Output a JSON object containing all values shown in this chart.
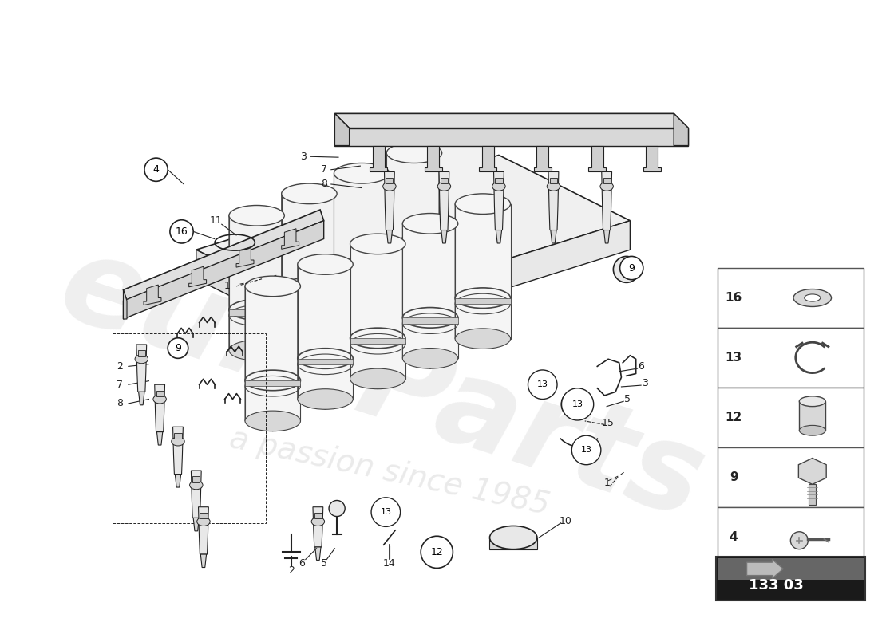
{
  "bg_color": "#ffffff",
  "part_number": "133 03",
  "watermark1": "euroParts",
  "watermark2": "a passion since 1985",
  "sidebar_parts": [
    {
      "num": "16",
      "type": "washer"
    },
    {
      "num": "13",
      "type": "clip"
    },
    {
      "num": "12",
      "type": "cylinder"
    },
    {
      "num": "9",
      "type": "bolt"
    },
    {
      "num": "4",
      "type": "screw"
    }
  ],
  "manifold_color": "#f5f5f5",
  "manifold_edge": "#333333",
  "cylinder_face": "#eeeeee",
  "cylinder_edge": "#444444",
  "rail_color": "#e8e8e8",
  "line_color": "#222222"
}
